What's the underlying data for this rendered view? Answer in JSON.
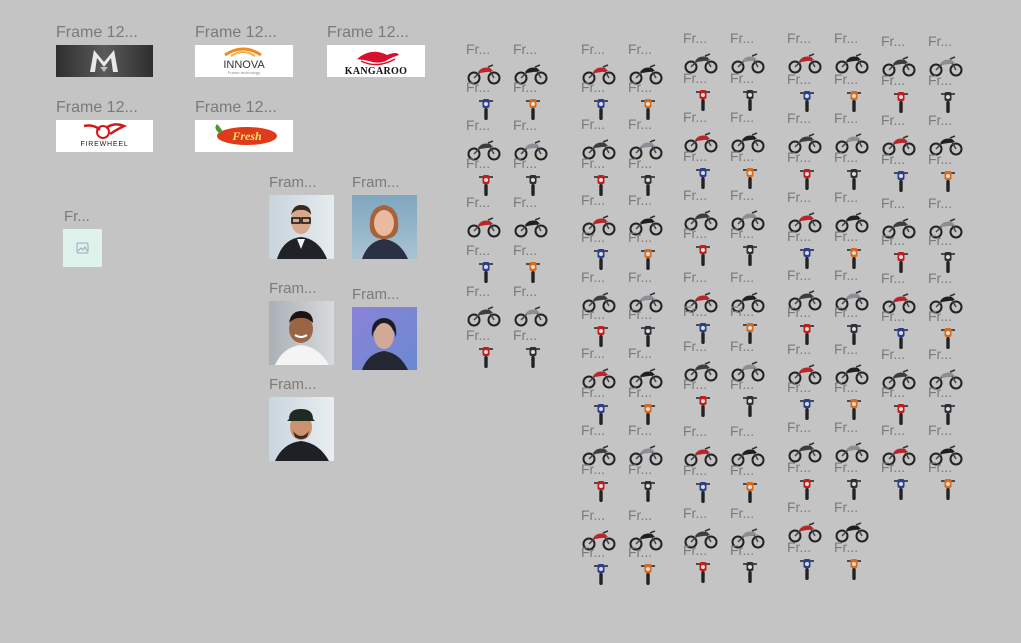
{
  "canvas": {
    "background": "#c4c4c4"
  },
  "logos": [
    {
      "label": "Frame 12...",
      "name": "m-logo",
      "text": ""
    },
    {
      "label": "Frame 12...",
      "name": "innova-logo",
      "text": "INNOVA",
      "sub": "Future technology"
    },
    {
      "label": "Frame 12...",
      "name": "kangaroo-logo",
      "text": "KANGAROO"
    },
    {
      "label": "Frame 12...",
      "name": "firewheel-logo",
      "text": "FIREWHEEL"
    },
    {
      "label": "Frame 12...",
      "name": "fresh-logo",
      "text": "Fresh"
    }
  ],
  "placeholder": {
    "label": "Fr..."
  },
  "portraits": [
    {
      "label": "Fram..."
    },
    {
      "label": "Fram..."
    },
    {
      "label": "Fram..."
    },
    {
      "label": "Fram..."
    },
    {
      "label": "Fram..."
    }
  ],
  "bike_label": "Fr...",
  "bike_label_short": "...",
  "icons": {
    "image": "image-icon",
    "bike": "motorcycle-icon",
    "portrait": "portrait-icon"
  }
}
